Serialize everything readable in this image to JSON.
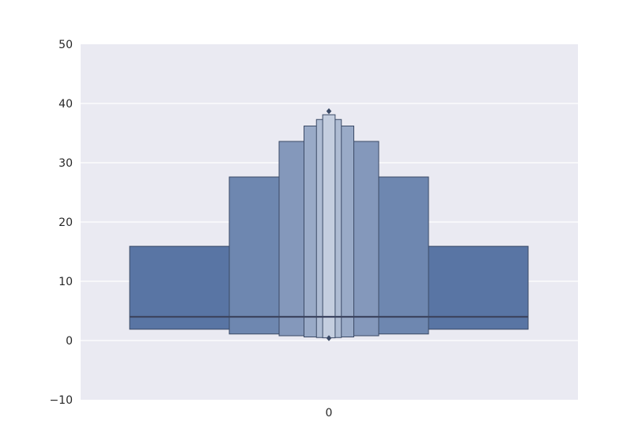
{
  "chart_data": {
    "type": "boxen",
    "title": "",
    "xlabel": "",
    "ylabel": "",
    "categories": [
      "0"
    ],
    "ylim": [
      -10,
      50
    ],
    "yticks": [
      -10,
      0,
      10,
      20,
      30,
      40,
      50
    ],
    "ytick_labels": [
      "−10",
      "0",
      "10",
      "20",
      "30",
      "40",
      "50"
    ],
    "grid": true,
    "median": 4.0,
    "letter_values": [
      {
        "low": 1.9,
        "high": 15.9,
        "width": 1.0
      },
      {
        "low": 1.1,
        "high": 27.6,
        "width": 0.5
      },
      {
        "low": 0.8,
        "high": 33.6,
        "width": 0.25
      },
      {
        "low": 0.6,
        "high": 36.2,
        "width": 0.125
      },
      {
        "low": 0.5,
        "high": 37.3,
        "width": 0.0625
      },
      {
        "low": 0.45,
        "high": 38.1,
        "width": 0.03125
      }
    ],
    "outliers": [
      0.4,
      38.7
    ],
    "colors": {
      "plot_background": "#EAEAF2",
      "grid": "#FFFFFF",
      "box_base": "#5975A4",
      "edge": "#3B4A66",
      "median_line": "#3D4560",
      "text": "#262626"
    }
  }
}
